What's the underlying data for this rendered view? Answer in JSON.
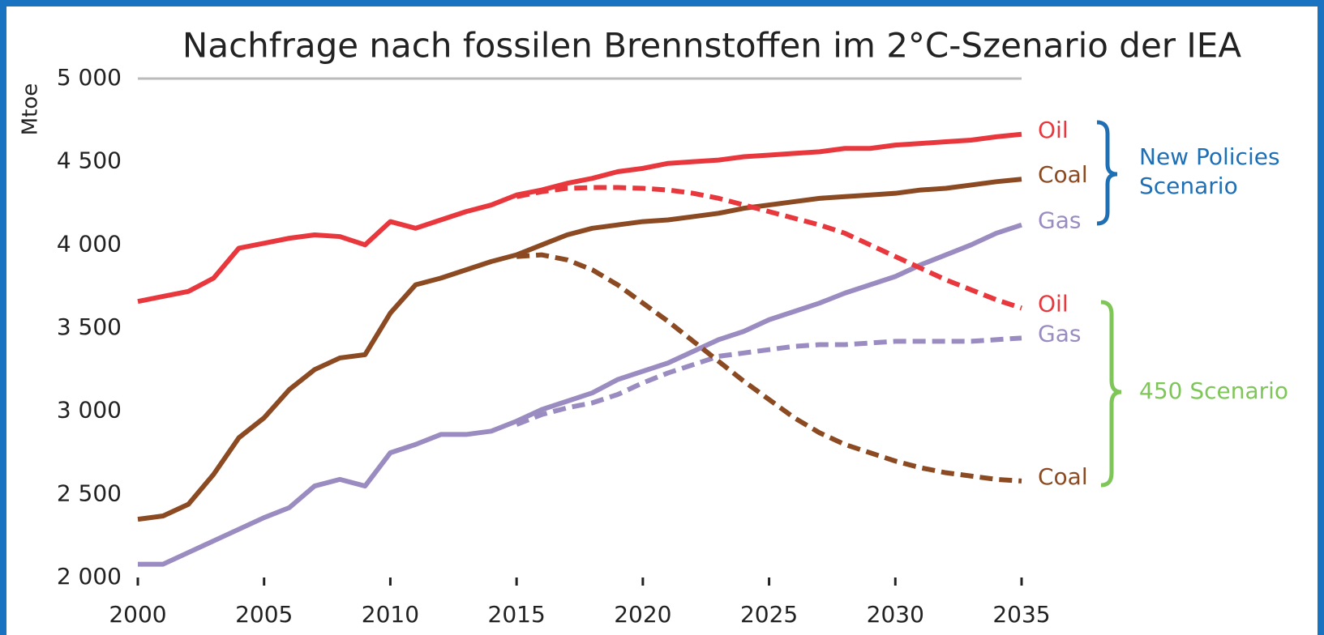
{
  "chart_data": {
    "type": "line",
    "title": "Nachfrage nach fossilen Brennstoffen im 2°C-Szenario der IEA",
    "y_label": "Mtoe",
    "x": [
      2000,
      2001,
      2002,
      2003,
      2004,
      2005,
      2006,
      2007,
      2008,
      2009,
      2010,
      2011,
      2012,
      2013,
      2014,
      2015,
      2016,
      2017,
      2018,
      2019,
      2020,
      2021,
      2022,
      2023,
      2024,
      2025,
      2026,
      2027,
      2028,
      2029,
      2030,
      2031,
      2032,
      2033,
      2034,
      2035
    ],
    "xlim": [
      2000,
      2035
    ],
    "xticks": [
      2000,
      2005,
      2010,
      2015,
      2020,
      2025,
      2030,
      2035
    ],
    "ylim": [
      2000,
      5000
    ],
    "yticks": [
      {
        "value": 5000,
        "label": "5 000"
      },
      {
        "value": 4500,
        "label": "4 500"
      },
      {
        "value": 4000,
        "label": "4 000"
      },
      {
        "value": 3500,
        "label": "3 500"
      },
      {
        "value": 3000,
        "label": "3 000"
      },
      {
        "value": 2500,
        "label": "2 500"
      },
      {
        "value": 2000,
        "label": "2 000"
      }
    ],
    "series": [
      {
        "name": "Oil",
        "color": "#e8383d",
        "dashed": false,
        "values": [
          3660,
          3690,
          3720,
          3800,
          3980,
          4010,
          4040,
          4060,
          4050,
          4000,
          4140,
          4100,
          4150,
          4200,
          4240,
          4300,
          4330,
          4370,
          4400,
          4440,
          4460,
          4490,
          4500,
          4510,
          4530,
          4540,
          4550,
          4560,
          4580,
          4580,
          4600,
          4610,
          4620,
          4630,
          4650,
          4665
        ]
      },
      {
        "name": "Coal",
        "color": "#8b4a22",
        "dashed": false,
        "values": [
          2350,
          2370,
          2440,
          2620,
          2840,
          2960,
          3130,
          3250,
          3320,
          3340,
          3590,
          3760,
          3800,
          3850,
          3900,
          3940,
          4000,
          4060,
          4100,
          4120,
          4140,
          4150,
          4170,
          4190,
          4220,
          4240,
          4260,
          4280,
          4290,
          4300,
          4310,
          4330,
          4340,
          4360,
          4380,
          4395
        ]
      },
      {
        "name": "Gas",
        "color": "#9a8cc0",
        "dashed": false,
        "values": [
          2080,
          2080,
          2150,
          2220,
          2290,
          2360,
          2420,
          2550,
          2590,
          2550,
          2750,
          2800,
          2860,
          2860,
          2880,
          2940,
          3010,
          3060,
          3110,
          3190,
          3240,
          3290,
          3360,
          3430,
          3480,
          3550,
          3600,
          3650,
          3710,
          3760,
          3810,
          3880,
          3940,
          4000,
          4070,
          4120
        ]
      },
      {
        "name": "Oil",
        "color": "#e8383d",
        "dashed": true,
        "values": [
          null,
          null,
          null,
          null,
          null,
          null,
          null,
          null,
          null,
          null,
          null,
          null,
          null,
          null,
          null,
          4290,
          4320,
          4340,
          4345,
          4345,
          4340,
          4330,
          4310,
          4280,
          4240,
          4200,
          4160,
          4120,
          4070,
          4000,
          3930,
          3860,
          3790,
          3730,
          3670,
          3620
        ]
      },
      {
        "name": "Gas",
        "color": "#9a8cc0",
        "dashed": true,
        "values": [
          null,
          null,
          null,
          null,
          null,
          null,
          null,
          null,
          null,
          null,
          null,
          null,
          null,
          null,
          null,
          2920,
          2980,
          3020,
          3050,
          3100,
          3170,
          3230,
          3280,
          3330,
          3350,
          3370,
          3390,
          3400,
          3400,
          3410,
          3420,
          3420,
          3420,
          3420,
          3430,
          3440
        ]
      },
      {
        "name": "Coal",
        "color": "#8b4a22",
        "dashed": true,
        "values": [
          null,
          null,
          null,
          null,
          null,
          null,
          null,
          null,
          null,
          null,
          null,
          null,
          null,
          null,
          null,
          3930,
          3940,
          3910,
          3850,
          3760,
          3650,
          3540,
          3420,
          3300,
          3180,
          3070,
          2960,
          2870,
          2800,
          2750,
          2700,
          2660,
          2630,
          2610,
          2590,
          2580
        ]
      }
    ],
    "annotations": [
      {
        "lines": [
          "New Policies",
          "Scenario"
        ],
        "color": "#1f6fb5"
      },
      {
        "lines": [
          "450 Scenario"
        ],
        "color": "#7dc657"
      }
    ]
  }
}
